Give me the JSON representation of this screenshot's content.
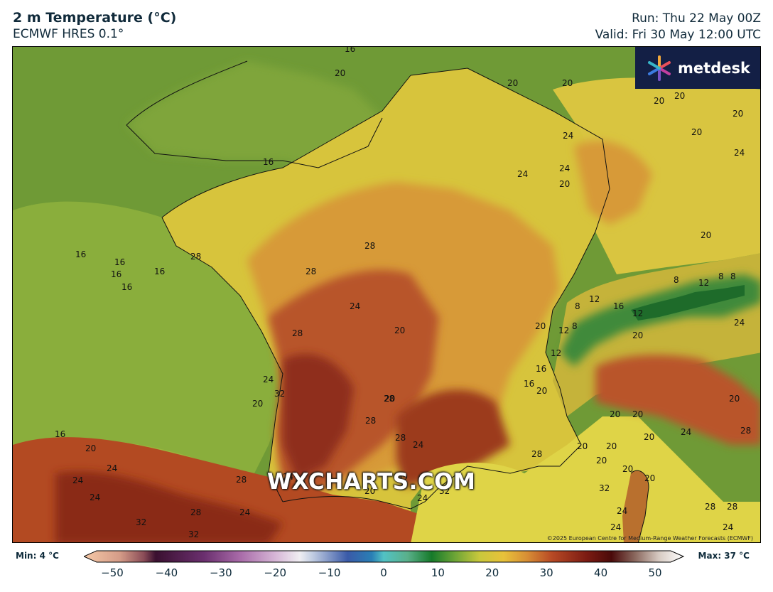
{
  "header": {
    "title": "2 m Temperature (°C)",
    "model": "ECMWF HRES 0.1°",
    "run": "Run: Thu 22 May 00Z",
    "valid": "Valid: Fri 30 May 12:00 UTC"
  },
  "logo": {
    "icon": "metdesk-flower-icon",
    "text": "metdesk"
  },
  "watermark": "WXCHARTS.COM",
  "copyright": "©2025 European Centre for Medium-Range Weather Forecasts (ECMWF)",
  "legend": {
    "min_label": "Min: 4 °C",
    "max_label": "Max: 37 °C",
    "ticks": [
      "−50",
      "−40",
      "−30",
      "−20",
      "−10",
      "0",
      "10",
      "20",
      "30",
      "40",
      "50"
    ],
    "range": [
      -50,
      50
    ]
  },
  "contour_labels": [
    {
      "text": "16"
    },
    {
      "text": "20"
    },
    {
      "text": "20"
    },
    {
      "text": "20"
    },
    {
      "text": "20"
    },
    {
      "text": "20"
    },
    {
      "text": "20"
    },
    {
      "text": "24"
    },
    {
      "text": "24"
    },
    {
      "text": "24"
    },
    {
      "text": "24"
    },
    {
      "text": "20"
    },
    {
      "text": "20"
    },
    {
      "text": "16"
    },
    {
      "text": "16"
    },
    {
      "text": "16"
    },
    {
      "text": "16"
    },
    {
      "text": "16"
    },
    {
      "text": "16"
    },
    {
      "text": "16"
    },
    {
      "text": "28"
    },
    {
      "text": "28"
    },
    {
      "text": "28"
    },
    {
      "text": "24"
    },
    {
      "text": "28"
    },
    {
      "text": "20"
    },
    {
      "text": "8"
    },
    {
      "text": "8"
    },
    {
      "text": "12"
    },
    {
      "text": "8"
    },
    {
      "text": "12"
    },
    {
      "text": "16"
    },
    {
      "text": "12"
    },
    {
      "text": "8"
    },
    {
      "text": "20"
    },
    {
      "text": "12"
    },
    {
      "text": "8"
    },
    {
      "text": "20"
    },
    {
      "text": "20"
    },
    {
      "text": "12"
    },
    {
      "text": "16"
    },
    {
      "text": "16"
    },
    {
      "text": "20"
    },
    {
      "text": "20"
    },
    {
      "text": "24"
    },
    {
      "text": "32"
    },
    {
      "text": "20"
    },
    {
      "text": "28"
    },
    {
      "text": "28"
    },
    {
      "text": "24"
    },
    {
      "text": "28"
    },
    {
      "text": "20"
    },
    {
      "text": "24"
    },
    {
      "text": "28"
    },
    {
      "text": "24"
    },
    {
      "text": "20"
    },
    {
      "text": "20"
    },
    {
      "text": "20"
    },
    {
      "text": "20"
    },
    {
      "text": "20"
    },
    {
      "text": "20"
    },
    {
      "text": "20"
    },
    {
      "text": "28"
    },
    {
      "text": "16"
    },
    {
      "text": "20"
    },
    {
      "text": "24"
    },
    {
      "text": "24"
    },
    {
      "text": "24"
    },
    {
      "text": "24"
    },
    {
      "text": "28"
    },
    {
      "text": "32"
    },
    {
      "text": "24"
    },
    {
      "text": "20"
    },
    {
      "text": "28"
    },
    {
      "text": "32"
    },
    {
      "text": "32"
    },
    {
      "text": "32"
    },
    {
      "text": "20"
    },
    {
      "text": "32"
    },
    {
      "text": "24"
    },
    {
      "text": "20"
    },
    {
      "text": "24"
    },
    {
      "text": "24"
    },
    {
      "text": "28"
    },
    {
      "text": "28"
    },
    {
      "text": "24"
    }
  ]
}
